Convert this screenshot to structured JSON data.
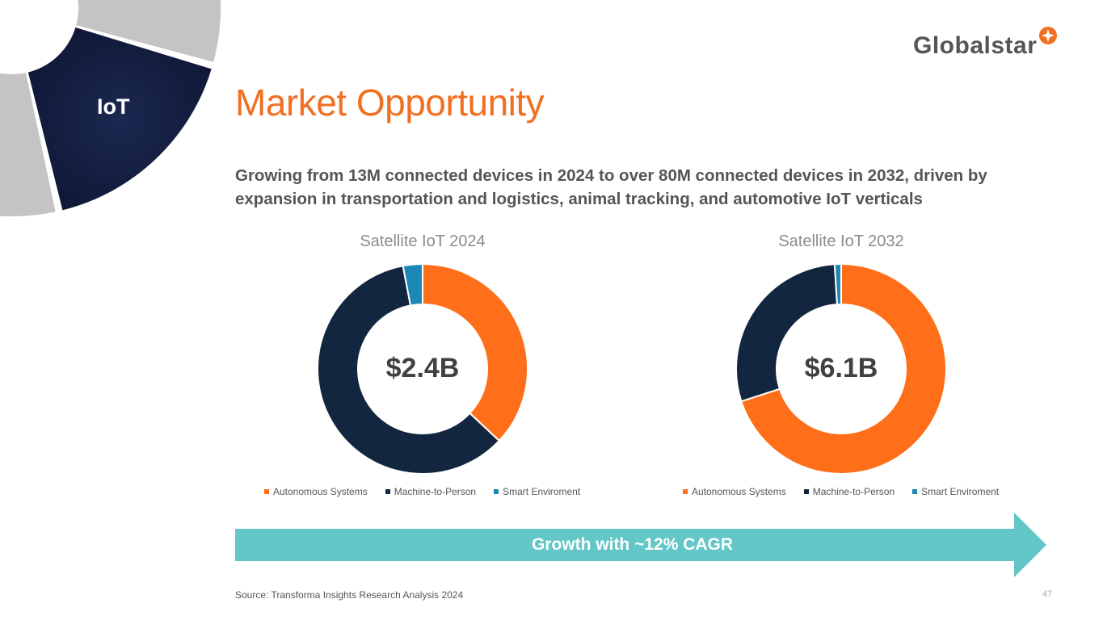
{
  "section_label": "IoT",
  "logo": {
    "text": "Globalstar"
  },
  "title": "Market Opportunity",
  "subtitle": "Growing from 13M connected devices in 2024 to over 80M connected devices in 2032, driven by expansion in transportation and logistics, animal tracking, and automotive IoT verticals",
  "colors": {
    "Autonomous Systems": "#FF6F1A",
    "Machine-to-Person": "#13263F",
    "Smart Enviroment": "#1E88B4",
    "arrow": "#62C7C6",
    "accent": "#F26F21"
  },
  "chart_data": [
    {
      "type": "pie",
      "title": "Satellite IoT 2024",
      "center_label": "$2.4B",
      "categories": [
        "Autonomous Systems",
        "Machine-to-Person",
        "Smart Enviroment"
      ],
      "values": [
        37,
        60,
        3
      ],
      "unit": "%",
      "legend": "bottom"
    },
    {
      "type": "pie",
      "title": "Satellite IoT 2032",
      "center_label": "$6.1B",
      "categories": [
        "Autonomous Systems",
        "Machine-to-Person",
        "Smart Enviroment"
      ],
      "values": [
        70,
        29,
        1
      ],
      "unit": "%",
      "legend": "bottom"
    }
  ],
  "arrow_label": "Growth with ~12% CAGR",
  "source": "Source: Transforma Insights Research Analysis 2024",
  "page_number": "47"
}
